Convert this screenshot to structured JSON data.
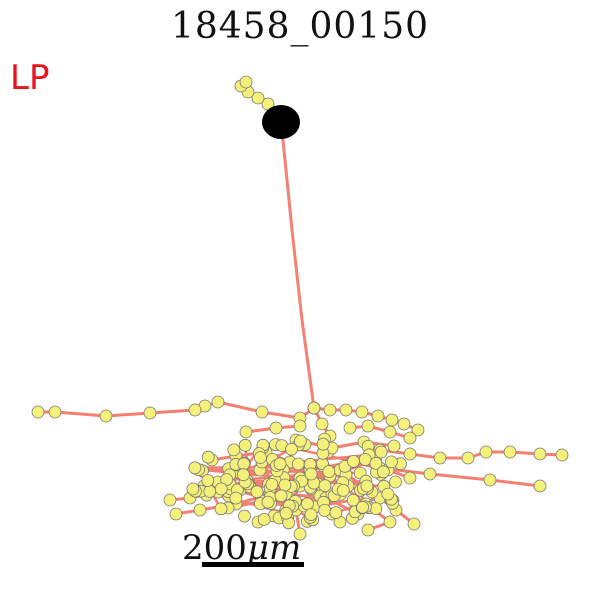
{
  "figure": {
    "title": "18458_00150",
    "region_label": "LP",
    "scale_bar_label": "200",
    "scale_bar_unit": "μm"
  },
  "colors": {
    "label_red": "#e8141c",
    "neurite": "#f47f72",
    "node_fill": "#f5f07a",
    "node_stroke": "#777777",
    "soma": "#000000"
  }
}
